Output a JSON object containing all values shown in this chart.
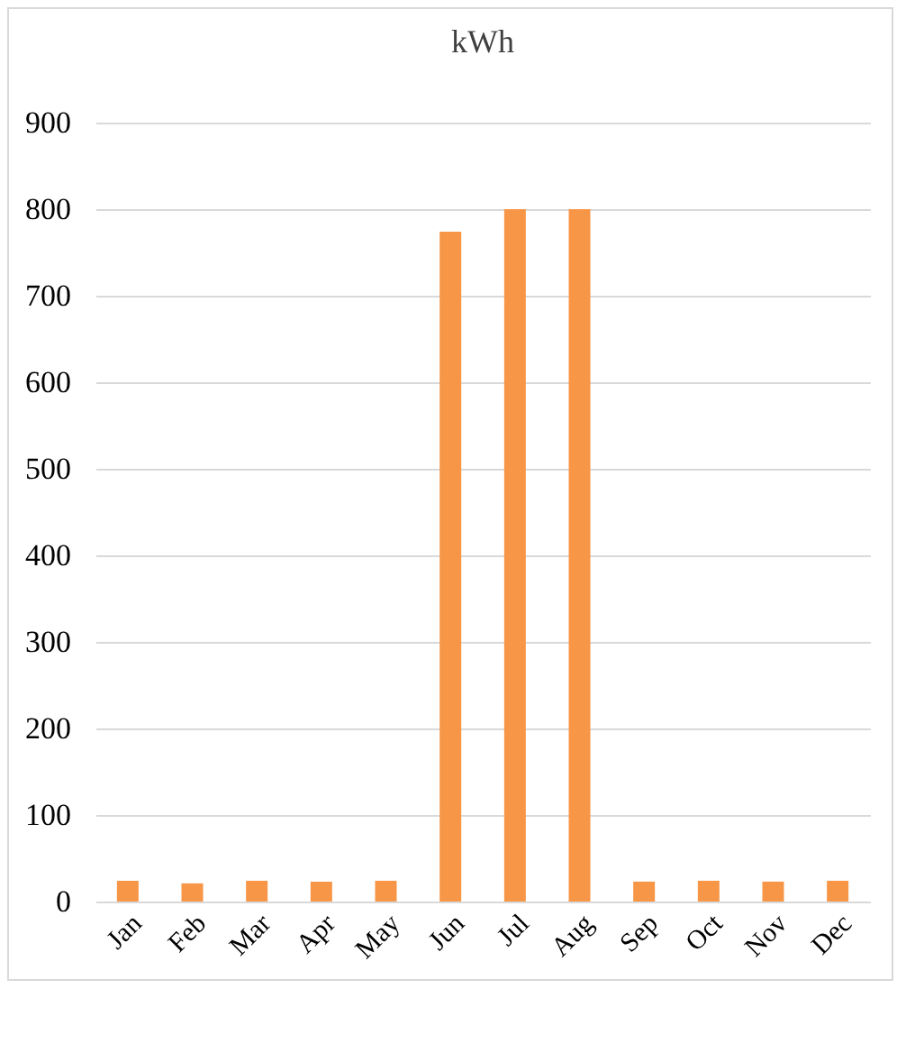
{
  "chart_data": {
    "type": "bar",
    "title": "kWh",
    "categories": [
      "Jan",
      "Feb",
      "Mar",
      "Apr",
      "May",
      "Jun",
      "Jul",
      "Aug",
      "Sep",
      "Oct",
      "Nov",
      "Dec"
    ],
    "values": [
      24,
      21,
      24,
      23,
      24,
      774,
      800,
      800,
      23,
      24,
      23,
      24
    ],
    "color": "#f79646",
    "ylim": [
      0,
      900
    ],
    "yticks": [
      0,
      100,
      200,
      300,
      400,
      500,
      600,
      700,
      800,
      900
    ],
    "grid": "y"
  }
}
